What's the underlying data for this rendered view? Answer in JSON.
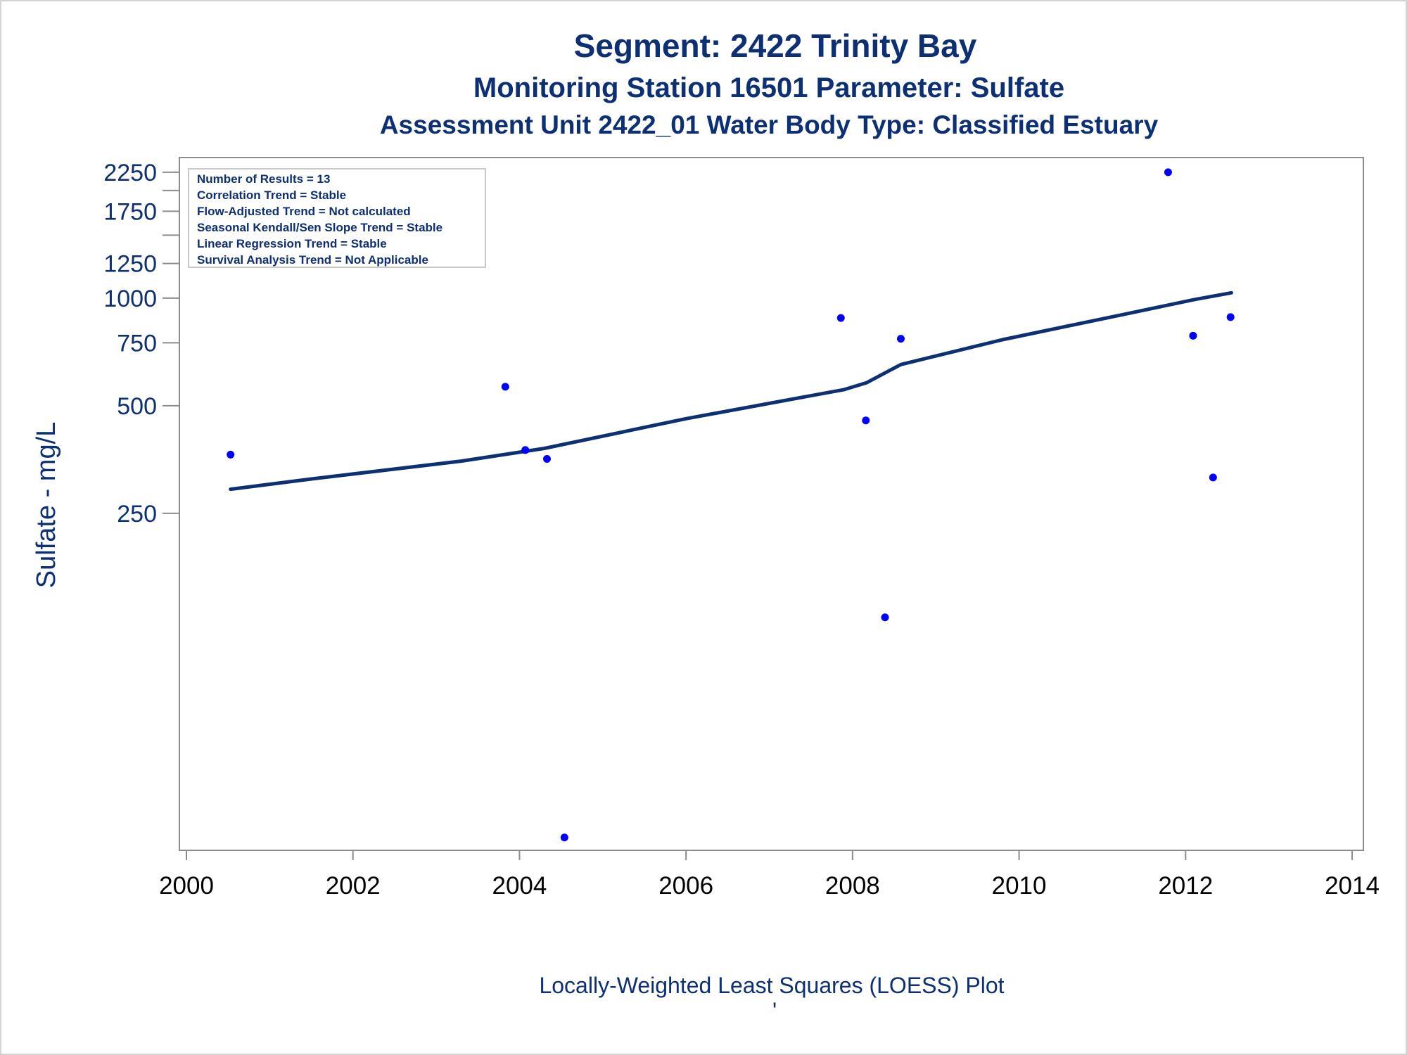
{
  "chart_data": {
    "type": "scatter",
    "title": "Segment: 2422  Trinity Bay",
    "subtitle": "Monitoring Station 16501 Parameter: Sulfate",
    "subtitle2": "Assessment Unit 2422_01   Water Body Type: Classified Estuary",
    "xlabel": "Locally-Weighted Least Squares (LOESS) Plot",
    "ylabel": "Sulfate - mg/L",
    "footnote": "'",
    "xlim": [
      2000,
      2014
    ],
    "x_ticks": [
      "2000",
      "2002",
      "2004",
      "2006",
      "2008",
      "2010",
      "2012",
      "2014"
    ],
    "y_ticks": [
      "250",
      "500",
      "750",
      "1000",
      "1250",
      "1750",
      "2250"
    ],
    "y_minor_ticks": [
      1500,
      2000
    ],
    "ylim": [
      30,
      2300
    ],
    "y_scale": "log",
    "grid": false,
    "legend_placement": "top-left",
    "legend_lines": [
      "Number of Results = 13",
      "Correlation Trend = Stable",
      "Flow-Adjusted Trend = Not calculated",
      "Seasonal Kendall/Sen Slope Trend = Stable",
      "Linear Regression Trend = Stable",
      "Survival Analysis Trend = Not Applicable"
    ],
    "series": [
      {
        "kind": "points",
        "color": "#0000ff",
        "x": [
          2000.53,
          2003.83,
          2004.07,
          2004.33,
          2004.54,
          2007.86,
          2008.16,
          2008.39,
          2008.58,
          2011.79,
          2012.09,
          2012.33,
          2012.54
        ],
        "y": [
          365,
          565,
          376,
          355,
          31,
          880,
          455,
          128,
          770,
          2250,
          785,
          315,
          885
        ]
      },
      {
        "kind": "loess-line",
        "color": "#0d2f73",
        "x": [
          2000.53,
          2001.5,
          2003.3,
          2004.3,
          2006.0,
          2007.9,
          2008.17,
          2008.58,
          2009.8,
          2011.2,
          2012.1,
          2012.55
        ],
        "y": [
          292,
          312,
          350,
          380,
          460,
          555,
          580,
          652,
          765,
          895,
          990,
          1035
        ]
      }
    ]
  }
}
